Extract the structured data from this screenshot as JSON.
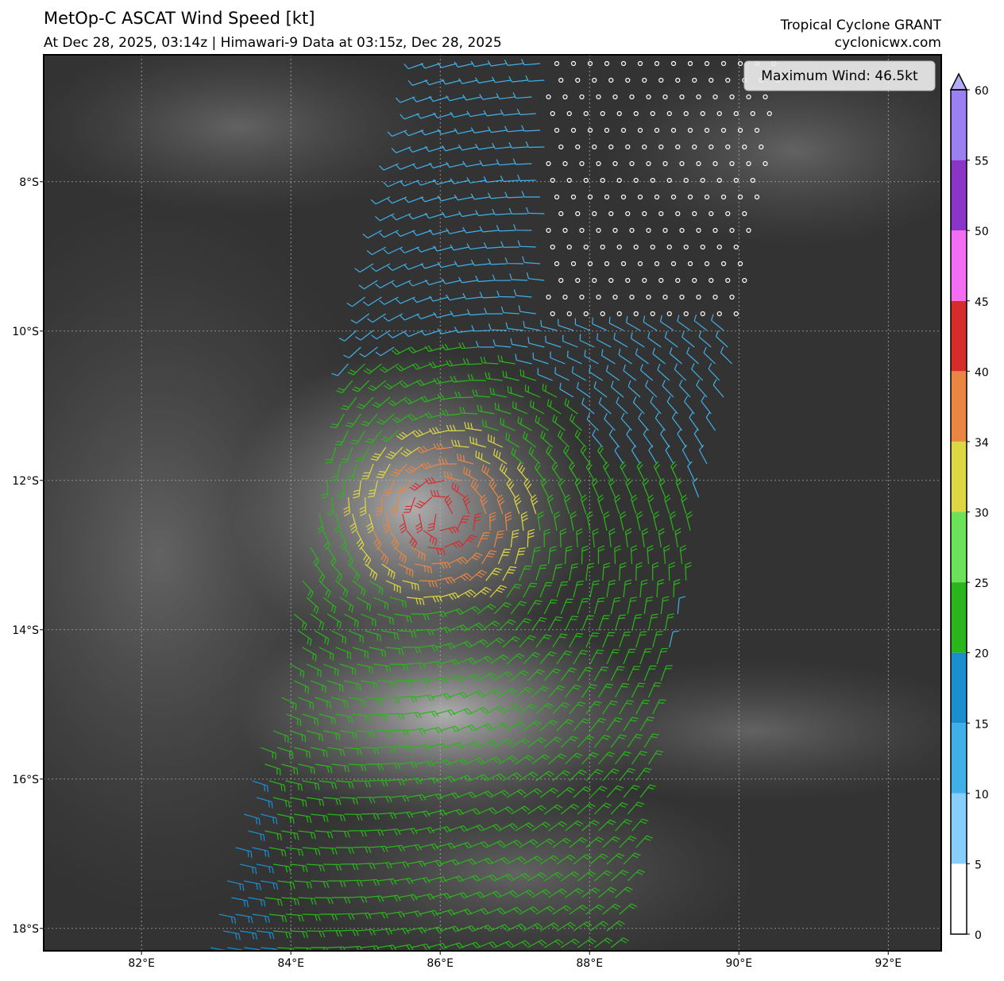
{
  "header": {
    "title": "MetOp-C ASCAT Wind Speed [kt]",
    "subtitle": "At Dec 28, 2025, 03:14z | Himawari-9 Data at 03:15z, Dec 28, 2025",
    "storm": "Tropical Cyclone GRANT",
    "site": "cyclonicwx.com"
  },
  "map": {
    "annotation": "Maximum Wind: 46.5kt",
    "xlim": [
      80.69,
      92.71
    ],
    "xticks": [
      {
        "value": 82,
        "label": "82°E"
      },
      {
        "value": 84,
        "label": "84°E"
      },
      {
        "value": 86,
        "label": "86°E"
      },
      {
        "value": 88,
        "label": "88°E"
      },
      {
        "value": 90,
        "label": "90°E"
      },
      {
        "value": 92,
        "label": "92°E"
      }
    ],
    "ylim": [
      -18.3,
      -6.3
    ],
    "yticks": [
      {
        "value": -8,
        "label": "8°S"
      },
      {
        "value": -10,
        "label": "10°S"
      },
      {
        "value": -12,
        "label": "12°S"
      },
      {
        "value": -14,
        "label": "14°S"
      },
      {
        "value": -16,
        "label": "16°S"
      },
      {
        "value": -18,
        "label": "18°S"
      }
    ],
    "grid": true
  },
  "colorbar": {
    "ticks": [
      0,
      5,
      10,
      15,
      20,
      25,
      30,
      34,
      40,
      45,
      50,
      55,
      60
    ],
    "colors": [
      "#ffffff",
      "#87cefa",
      "#41b0e8",
      "#1b8ecf",
      "#2bb51c",
      "#6be25a",
      "#ddd744",
      "#ea8544",
      "#d62c2c",
      "#f46ef4",
      "#8a34c8",
      "#9a80f0"
    ],
    "extend_color": "#b4aaf8"
  }
}
